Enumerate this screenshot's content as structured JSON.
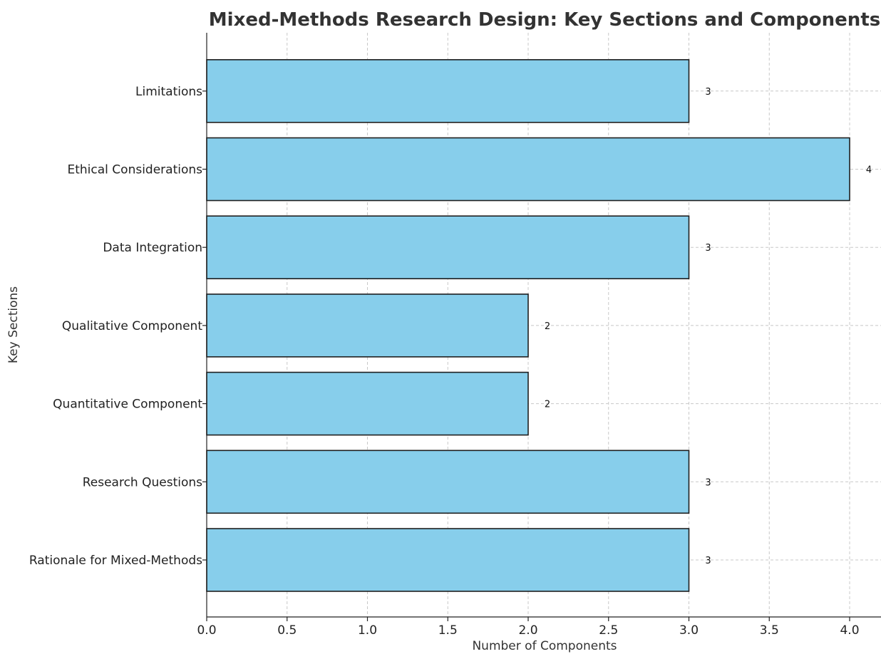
{
  "chart_data": {
    "type": "bar",
    "orientation": "horizontal",
    "title": "Mixed-Methods Research Design: Key Sections and Components",
    "xlabel": "Number of Components",
    "ylabel": "Key Sections",
    "categories": [
      "Rationale for Mixed-Methods",
      "Research Questions",
      "Quantitative Component",
      "Qualitative Component",
      "Data Integration",
      "Ethical Considerations",
      "Limitations"
    ],
    "values": [
      3,
      3,
      2,
      2,
      3,
      4,
      3
    ],
    "xlim": [
      0,
      4.2
    ],
    "xticks": [
      "0.0",
      "0.5",
      "1.0",
      "1.5",
      "2.0",
      "2.5",
      "3.0",
      "3.5",
      "4.0"
    ],
    "grid": true,
    "bar_color": "#87ceeb",
    "edge_color": "#1f1f1f"
  }
}
